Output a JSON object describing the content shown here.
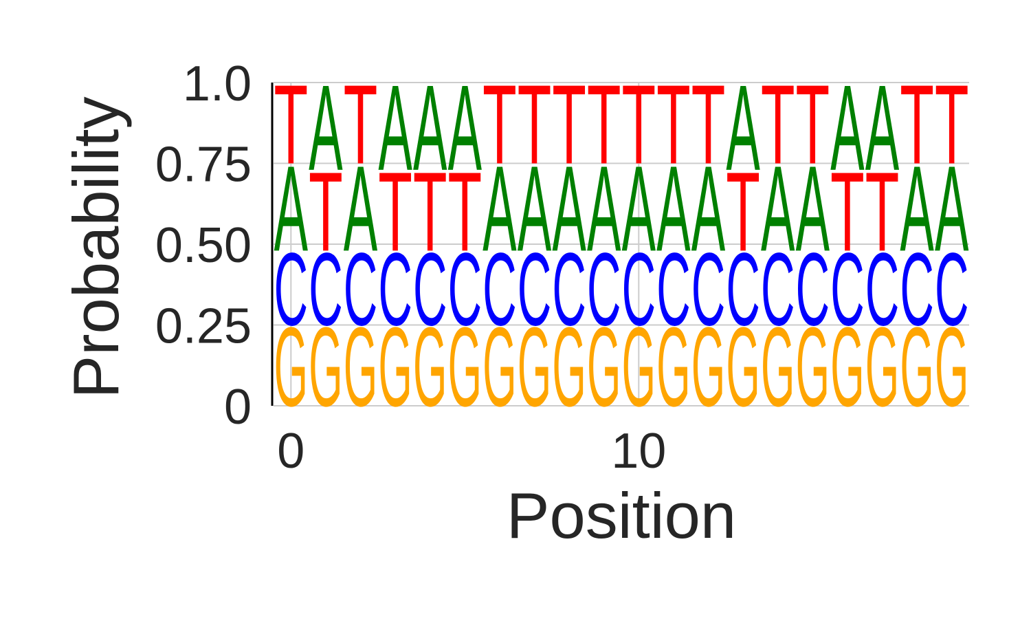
{
  "chart_data": {
    "type": "sequence-logo",
    "title": "",
    "xlabel": "Position",
    "ylabel": "Probability",
    "ylim": [
      0,
      1
    ],
    "xlim": [
      -0.5,
      19.5
    ],
    "yticks": [
      {
        "value": 0,
        "label": "0"
      },
      {
        "value": 0.25,
        "label": "0.25"
      },
      {
        "value": 0.5,
        "label": "0.50"
      },
      {
        "value": 0.75,
        "label": "0.75"
      },
      {
        "value": 1.0,
        "label": "1.0"
      }
    ],
    "xticks": [
      {
        "value": 0,
        "label": "0"
      },
      {
        "value": 10,
        "label": "10"
      }
    ],
    "grid": true,
    "colors": {
      "A": "#008000",
      "C": "#0000ff",
      "G": "#ffa500",
      "T": "#ff0000"
    },
    "positions": [
      0,
      1,
      2,
      3,
      4,
      5,
      6,
      7,
      8,
      9,
      10,
      11,
      12,
      13,
      14,
      15,
      16,
      17,
      18,
      19
    ],
    "stacks": [
      [
        [
          "G",
          0.25
        ],
        [
          "C",
          0.23
        ],
        [
          "A",
          0.27
        ],
        [
          "T",
          0.25
        ]
      ],
      [
        [
          "G",
          0.25
        ],
        [
          "C",
          0.23
        ],
        [
          "T",
          0.25
        ],
        [
          "A",
          0.27
        ]
      ],
      [
        [
          "G",
          0.25
        ],
        [
          "C",
          0.23
        ],
        [
          "A",
          0.27
        ],
        [
          "T",
          0.25
        ]
      ],
      [
        [
          "G",
          0.25
        ],
        [
          "C",
          0.23
        ],
        [
          "T",
          0.25
        ],
        [
          "A",
          0.27
        ]
      ],
      [
        [
          "G",
          0.25
        ],
        [
          "C",
          0.23
        ],
        [
          "T",
          0.25
        ],
        [
          "A",
          0.27
        ]
      ],
      [
        [
          "G",
          0.25
        ],
        [
          "C",
          0.23
        ],
        [
          "T",
          0.25
        ],
        [
          "A",
          0.27
        ]
      ],
      [
        [
          "G",
          0.25
        ],
        [
          "C",
          0.23
        ],
        [
          "A",
          0.27
        ],
        [
          "T",
          0.25
        ]
      ],
      [
        [
          "G",
          0.25
        ],
        [
          "C",
          0.23
        ],
        [
          "A",
          0.27
        ],
        [
          "T",
          0.25
        ]
      ],
      [
        [
          "G",
          0.25
        ],
        [
          "C",
          0.23
        ],
        [
          "A",
          0.27
        ],
        [
          "T",
          0.25
        ]
      ],
      [
        [
          "G",
          0.25
        ],
        [
          "C",
          0.23
        ],
        [
          "A",
          0.27
        ],
        [
          "T",
          0.25
        ]
      ],
      [
        [
          "G",
          0.25
        ],
        [
          "C",
          0.23
        ],
        [
          "A",
          0.27
        ],
        [
          "T",
          0.25
        ]
      ],
      [
        [
          "G",
          0.25
        ],
        [
          "C",
          0.23
        ],
        [
          "A",
          0.27
        ],
        [
          "T",
          0.25
        ]
      ],
      [
        [
          "G",
          0.25
        ],
        [
          "C",
          0.23
        ],
        [
          "A",
          0.27
        ],
        [
          "T",
          0.25
        ]
      ],
      [
        [
          "G",
          0.25
        ],
        [
          "C",
          0.23
        ],
        [
          "T",
          0.25
        ],
        [
          "A",
          0.27
        ]
      ],
      [
        [
          "G",
          0.25
        ],
        [
          "C",
          0.23
        ],
        [
          "A",
          0.27
        ],
        [
          "T",
          0.25
        ]
      ],
      [
        [
          "G",
          0.25
        ],
        [
          "C",
          0.23
        ],
        [
          "A",
          0.27
        ],
        [
          "T",
          0.25
        ]
      ],
      [
        [
          "G",
          0.25
        ],
        [
          "C",
          0.23
        ],
        [
          "T",
          0.25
        ],
        [
          "A",
          0.27
        ]
      ],
      [
        [
          "G",
          0.25
        ],
        [
          "C",
          0.23
        ],
        [
          "T",
          0.25
        ],
        [
          "A",
          0.27
        ]
      ],
      [
        [
          "G",
          0.25
        ],
        [
          "C",
          0.23
        ],
        [
          "A",
          0.27
        ],
        [
          "T",
          0.25
        ]
      ],
      [
        [
          "G",
          0.25
        ],
        [
          "C",
          0.23
        ],
        [
          "A",
          0.27
        ],
        [
          "T",
          0.25
        ]
      ]
    ]
  }
}
